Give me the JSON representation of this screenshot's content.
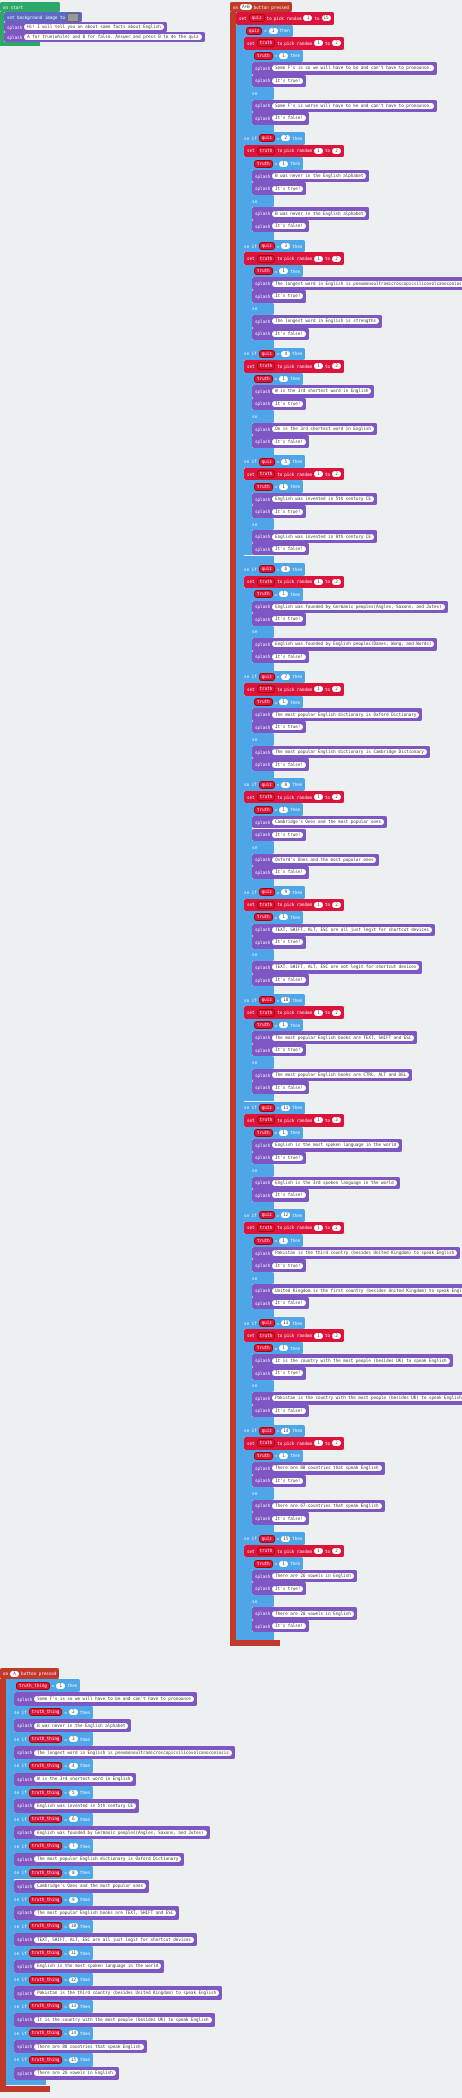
{
  "keywords": {
    "if": "if",
    "then": "then",
    "else": "else",
    "else_if": "else if",
    "splash": "splash",
    "set": "set",
    "to": "to",
    "pick_random": "pick random",
    "eq": "=",
    "set_bg": "set background image to",
    "on": "on",
    "button_pressed": "button pressed",
    "on_start": "on start"
  },
  "on_start": {
    "splashes": [
      "Hi! I will tell you an about some facts about English",
      "A for true(while) and B for false. Answer and press B to do the quiz"
    ]
  },
  "quiz_event": {
    "button": "A+B",
    "quiz_var": "quiz",
    "quiz_low": 1,
    "quiz_high": 15,
    "truth_var": "truth",
    "truth_low": 1,
    "truth_high": 2,
    "truth_value": 1,
    "true_result": "It's true!",
    "false_result": "It's false!",
    "branches": [
      {
        "quiz": 1,
        "true_text": "Some F's is so we will have to be and can't have to pronounce.",
        "false_text": "Some F's is worse will have to be and can't have to pronounce."
      },
      {
        "quiz": 2,
        "true_text": "B was never in the English alphabet",
        "false_text": "B was never in the English alphabet"
      },
      {
        "quiz": 3,
        "true_text": "The longest word in English is pneumonoultramicroscopicsilicovolcanoconiosis",
        "false_text": "The longest word in English is strengths"
      },
      {
        "quiz": 4,
        "true_text": "W is the 3rd shortest word in English",
        "false_text": "Oe is the 3rd shortest word in English"
      },
      {
        "quiz": 5,
        "true_text": "English was invented in 5th century CE",
        "false_text": "English was invented in 8th century CE"
      },
      {
        "quiz": 6,
        "true_text": "English was founded by Germanic peoples(Angles, Saxons, and Jutes)",
        "false_text": "English was founded by English peoples(Danes, Wong, and Words)"
      },
      {
        "quiz": 7,
        "true_text": "The most popular English dictionary is Oxford Dictionary",
        "false_text": "The most popular English dictionary is Cambridge Dictionary"
      },
      {
        "quiz": 8,
        "true_text": "Cambridge's Ones and the most popular ones",
        "false_text": "Oxford's Ones and the most popular ones"
      },
      {
        "quiz": 9,
        "true_text": "TEXT, SHIFT, ALT, ESC are all just legit for shortcut devices",
        "false_text": "TEXT, SHIFT, ALT, ESC are not legit for shortcut devices"
      },
      {
        "quiz": 10,
        "true_text": "The most popular English books are TEXT, SHIFT and ESC",
        "false_text": "The most popular English books are CTRL, ALT and DEL"
      },
      {
        "quiz": 11,
        "true_text": "English is the most spoken language in the world",
        "false_text": "English is the 3rd spoken language in the world"
      },
      {
        "quiz": 12,
        "true_text": "Pakistan is the third country (besides United Kingdom) to speak English",
        "false_text": "United Kingdom is the first country (besides United Kingdom) to speak English"
      },
      {
        "quiz": 13,
        "true_text": "It is the country with the most people (besides UK) to speak English",
        "false_text": "Pakistan is the country with the most people (besides UK) to speak English"
      },
      {
        "quiz": 14,
        "true_text": "There are 88 countries that speak English",
        "false_text": "There are 67 countries that speak English"
      },
      {
        "quiz": 15,
        "true_text": "There are 26 vowels in English",
        "false_text": "There are 20 vowels in English"
      }
    ]
  },
  "answer_event": {
    "button": "A",
    "var": "truth_thing",
    "rows": [
      {
        "value": 1,
        "text": "Some F's is so we will have to be and can't have to pronounce"
      },
      {
        "value": 2,
        "text": "B was never in the English alphabet"
      },
      {
        "value": 3,
        "text": "The longest word in English is pneumonoultramicroscopicsilicovolcanoconiosis"
      },
      {
        "value": 4,
        "text": "W is the 3rd shortest word in English"
      },
      {
        "value": 5,
        "text": "English was invented in 5th century CE"
      },
      {
        "value": 6,
        "text": "English was founded by Germanic peoples(Angles, Saxons, and Jutes)"
      },
      {
        "value": 7,
        "text": "The most popular English dictionary is Oxford Dictionary"
      },
      {
        "value": 8,
        "text": "Cambridge's Ones and the most popular ones"
      },
      {
        "value": 9,
        "text": "The most popular English books are TEXT, SHIFT and ESC"
      },
      {
        "value": 10,
        "text": "TEXT, SHIFT, ALT, ESC are all just legit for shortcut devices"
      },
      {
        "value": 11,
        "text": "English is the most spoken language in the world"
      },
      {
        "value": 12,
        "text": "Pakistan is the third country (besides United Kingdom) to speak English"
      },
      {
        "value": 13,
        "text": "It is the country with the most people (besides UK) to speak English"
      },
      {
        "value": 14,
        "text": "There are 88 countries that speak English"
      },
      {
        "value": 15,
        "text": "There are 26 vowels in English"
      }
    ]
  }
}
